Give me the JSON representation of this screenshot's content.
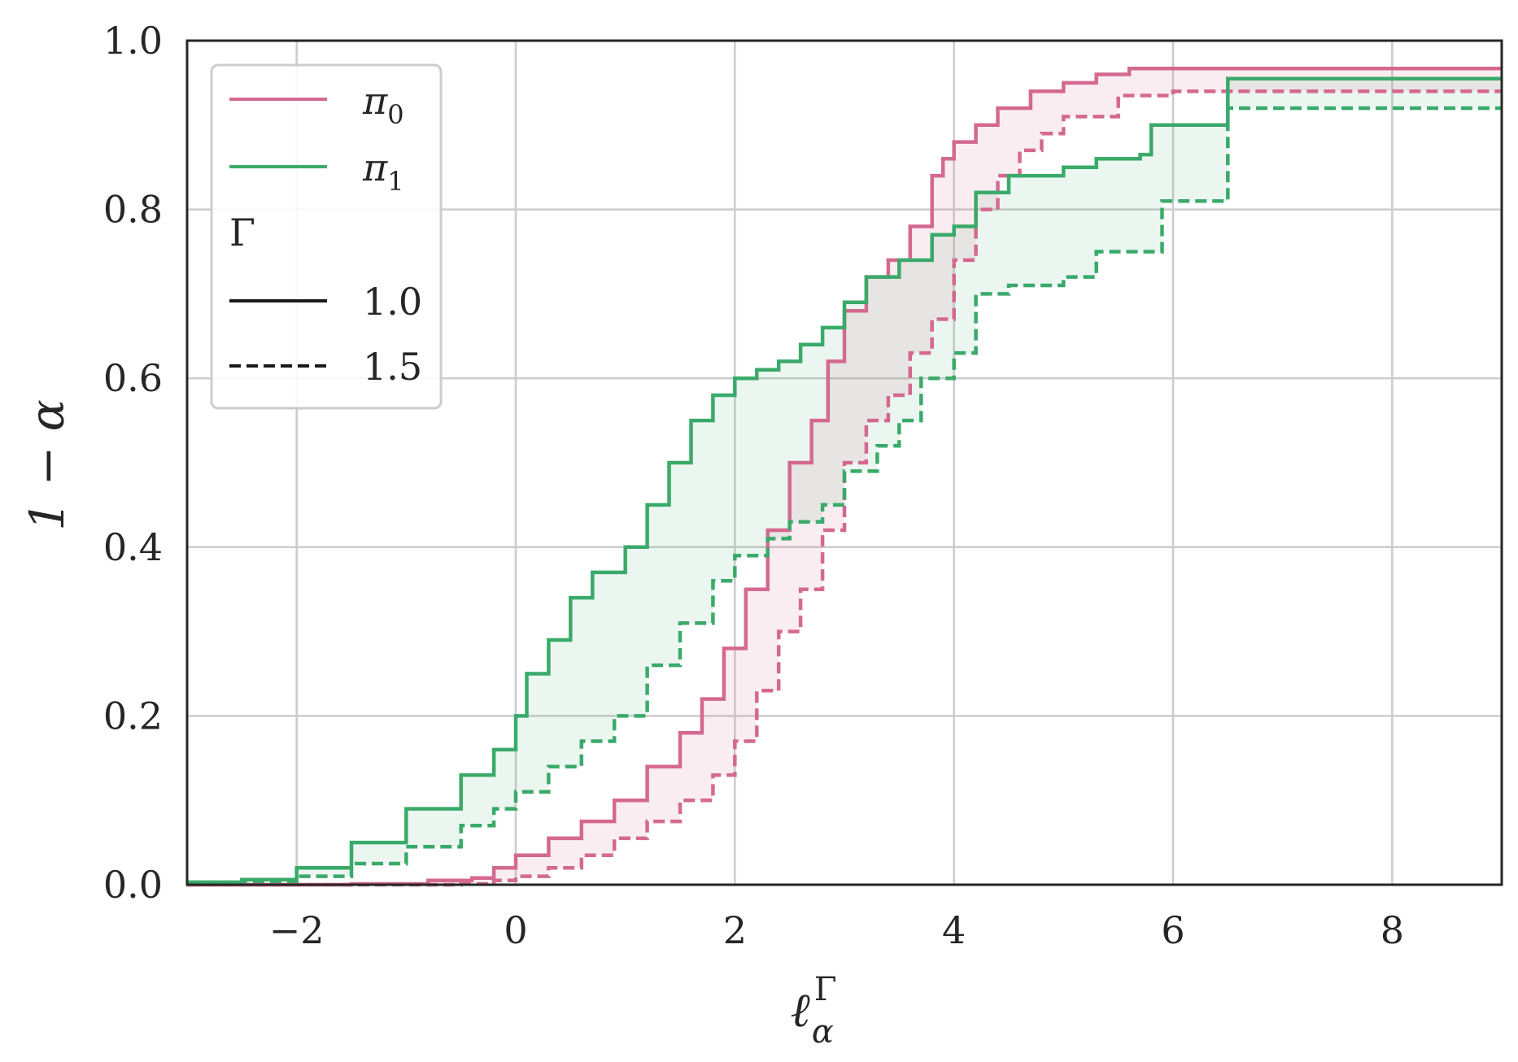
{
  "chart_data": {
    "type": "line",
    "xlabel": {
      "base": "ℓ",
      "sub": "α",
      "sup": "Γ"
    },
    "ylabel": "1 − α",
    "xlim": [
      -3,
      9
    ],
    "ylim": [
      0,
      1
    ],
    "xticks": [
      -2,
      0,
      2,
      4,
      6,
      8
    ],
    "xtick_labels": [
      "−2",
      "0",
      "2",
      "4",
      "6",
      "8"
    ],
    "yticks": [
      0,
      0.2,
      0.4,
      0.6,
      0.8,
      1.0
    ],
    "ytick_labels": [
      "0.0",
      "0.2",
      "0.4",
      "0.6",
      "0.8",
      "1.0"
    ],
    "grid": true,
    "legend": {
      "placement": "top-left",
      "color_title": "",
      "color_entries": [
        {
          "label": "π",
          "sub": "0",
          "color": "#d4698f"
        },
        {
          "label": "π",
          "sub": "1",
          "color": "#3aaa6a"
        }
      ],
      "style_title": "Γ",
      "style_entries": [
        {
          "label": "1.0",
          "dash": "solid"
        },
        {
          "label": "1.5",
          "dash": "dashed"
        }
      ]
    },
    "series": [
      {
        "name": "π0, Γ = 1.0",
        "color": "#d4698f",
        "dash": "solid",
        "x": [
          -3,
          -1.5,
          -0.8,
          -0.4,
          -0.2,
          0.0,
          0.3,
          0.6,
          0.9,
          1.2,
          1.5,
          1.7,
          1.9,
          2.1,
          2.3,
          2.5,
          2.7,
          2.85,
          3.0,
          3.2,
          3.4,
          3.6,
          3.8,
          3.9,
          4.0,
          4.2,
          4.4,
          4.7,
          5.0,
          5.3,
          5.6,
          6.0,
          7.0,
          9.0
        ],
        "y": [
          0.0,
          0.001,
          0.005,
          0.008,
          0.02,
          0.035,
          0.055,
          0.075,
          0.1,
          0.14,
          0.18,
          0.22,
          0.28,
          0.35,
          0.42,
          0.5,
          0.55,
          0.62,
          0.68,
          0.72,
          0.74,
          0.78,
          0.84,
          0.86,
          0.88,
          0.9,
          0.92,
          0.94,
          0.95,
          0.96,
          0.967,
          0.967,
          0.967,
          0.967
        ]
      },
      {
        "name": "π0, Γ = 1.5",
        "color": "#d4698f",
        "dash": "dashed",
        "x": [
          -3,
          -0.5,
          -0.2,
          0.0,
          0.3,
          0.6,
          0.9,
          1.2,
          1.5,
          1.8,
          2.0,
          2.2,
          2.4,
          2.6,
          2.8,
          3.0,
          3.2,
          3.4,
          3.6,
          3.8,
          4.0,
          4.2,
          4.4,
          4.6,
          4.8,
          5.0,
          5.5,
          6.0,
          7.0,
          9.0
        ],
        "y": [
          0.0,
          0.001,
          0.005,
          0.01,
          0.02,
          0.035,
          0.055,
          0.075,
          0.1,
          0.13,
          0.17,
          0.23,
          0.3,
          0.35,
          0.42,
          0.5,
          0.55,
          0.58,
          0.63,
          0.67,
          0.74,
          0.8,
          0.84,
          0.87,
          0.89,
          0.91,
          0.935,
          0.94,
          0.94,
          0.94
        ]
      },
      {
        "name": "π1, Γ = 1.0",
        "color": "#3aaa6a",
        "dash": "solid",
        "x": [
          -3,
          -2.5,
          -2.0,
          -1.5,
          -1.0,
          -0.5,
          -0.2,
          0.0,
          0.1,
          0.3,
          0.5,
          0.7,
          1.0,
          1.2,
          1.4,
          1.6,
          1.8,
          2.0,
          2.2,
          2.4,
          2.6,
          2.8,
          3.0,
          3.2,
          3.5,
          3.8,
          4.0,
          4.2,
          4.5,
          5.0,
          5.3,
          5.7,
          5.8,
          6.4,
          6.5,
          9.0
        ],
        "y": [
          0.003,
          0.006,
          0.02,
          0.05,
          0.09,
          0.13,
          0.16,
          0.2,
          0.25,
          0.29,
          0.34,
          0.37,
          0.4,
          0.45,
          0.5,
          0.55,
          0.58,
          0.6,
          0.61,
          0.62,
          0.64,
          0.66,
          0.69,
          0.72,
          0.74,
          0.77,
          0.78,
          0.82,
          0.84,
          0.85,
          0.86,
          0.865,
          0.9,
          0.9,
          0.955,
          0.955
        ]
      },
      {
        "name": "π1, Γ = 1.5",
        "color": "#3aaa6a",
        "dash": "dashed",
        "x": [
          -3,
          -2.5,
          -2.0,
          -1.5,
          -1.0,
          -0.5,
          -0.2,
          0.0,
          0.3,
          0.6,
          0.9,
          1.2,
          1.5,
          1.8,
          2.0,
          2.3,
          2.5,
          2.8,
          3.0,
          3.3,
          3.5,
          3.7,
          4.0,
          4.2,
          4.5,
          5.0,
          5.3,
          5.8,
          5.9,
          6.4,
          6.5,
          9.0
        ],
        "y": [
          0.001,
          0.004,
          0.01,
          0.025,
          0.045,
          0.07,
          0.09,
          0.11,
          0.14,
          0.17,
          0.2,
          0.26,
          0.31,
          0.36,
          0.39,
          0.41,
          0.43,
          0.45,
          0.49,
          0.52,
          0.55,
          0.6,
          0.63,
          0.7,
          0.71,
          0.72,
          0.75,
          0.75,
          0.81,
          0.81,
          0.92,
          0.92
        ]
      }
    ],
    "bands": [
      {
        "between": [
          "π0, Γ = 1.0",
          "π0, Γ = 1.5"
        ],
        "color": "#d4698f",
        "opacity": 0.12
      },
      {
        "between": [
          "π1, Γ = 1.0",
          "π1, Γ = 1.5"
        ],
        "color": "#3aaa6a",
        "opacity": 0.1
      }
    ]
  }
}
